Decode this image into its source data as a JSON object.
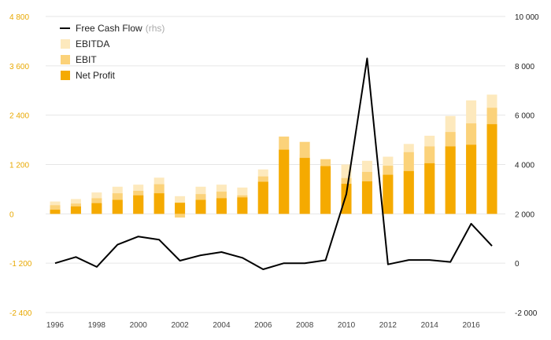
{
  "chart_data": {
    "type": "bar",
    "categories": [
      "1996",
      "1997",
      "1998",
      "1999",
      "2000",
      "2001",
      "2002",
      "2003",
      "2004",
      "2005",
      "2006",
      "2007",
      "2008",
      "2009",
      "2010",
      "2011",
      "2012",
      "2013",
      "2014",
      "2015",
      "2016",
      "2017"
    ],
    "x_tick_labels": [
      "1996",
      "1998",
      "2000",
      "2002",
      "2004",
      "2006",
      "2008",
      "2010",
      "2012",
      "2014",
      "2016"
    ],
    "left_axis": {
      "ylim": [
        -2400,
        4800
      ],
      "ticks": [
        4800,
        3600,
        2400,
        1200,
        0,
        -1200,
        -2400
      ],
      "tick_labels": [
        "4 800",
        "3 600",
        "2 400",
        "1 200",
        "0",
        "-1 200",
        "-2 400"
      ]
    },
    "right_axis": {
      "ylim": [
        -2000,
        10000
      ],
      "ticks": [
        10000,
        8000,
        6000,
        4000,
        2000,
        0,
        -2000
      ],
      "tick_labels": [
        "10 000",
        "8 000",
        "6 000",
        "4 000",
        "2 000",
        "0",
        "-2 000"
      ]
    },
    "series": [
      {
        "name": "EBITDA",
        "color": "#fde9bd",
        "values": [
          300,
          360,
          520,
          660,
          710,
          880,
          430,
          660,
          710,
          640,
          1080,
          1570,
          1450,
          1050,
          1200,
          1290,
          1390,
          1700,
          1900,
          2380,
          2760,
          2900
        ]
      },
      {
        "name": "EBIT",
        "color": "#fbd27a",
        "values": [
          210,
          250,
          380,
          500,
          560,
          720,
          -90,
          480,
          540,
          450,
          910,
          1880,
          1750,
          1330,
          870,
          1020,
          1170,
          1500,
          1640,
          1990,
          2200,
          2580
        ]
      },
      {
        "name": "Net Profit",
        "color": "#f5aa00",
        "values": [
          100,
          180,
          260,
          340,
          450,
          500,
          270,
          340,
          380,
          400,
          780,
          1560,
          1360,
          1160,
          730,
          790,
          950,
          1040,
          1230,
          1640,
          1680,
          2180
        ]
      },
      {
        "name": "Free Cash Flow",
        "suffix": "(rhs)",
        "color": "#000000",
        "axis": "right",
        "values": [
          0,
          250,
          -150,
          750,
          1080,
          950,
          100,
          320,
          450,
          220,
          -250,
          0,
          0,
          120,
          2800,
          8300,
          -50,
          130,
          130,
          50,
          1600,
          700
        ]
      }
    ],
    "legend_position": "top-left",
    "grid": true
  }
}
